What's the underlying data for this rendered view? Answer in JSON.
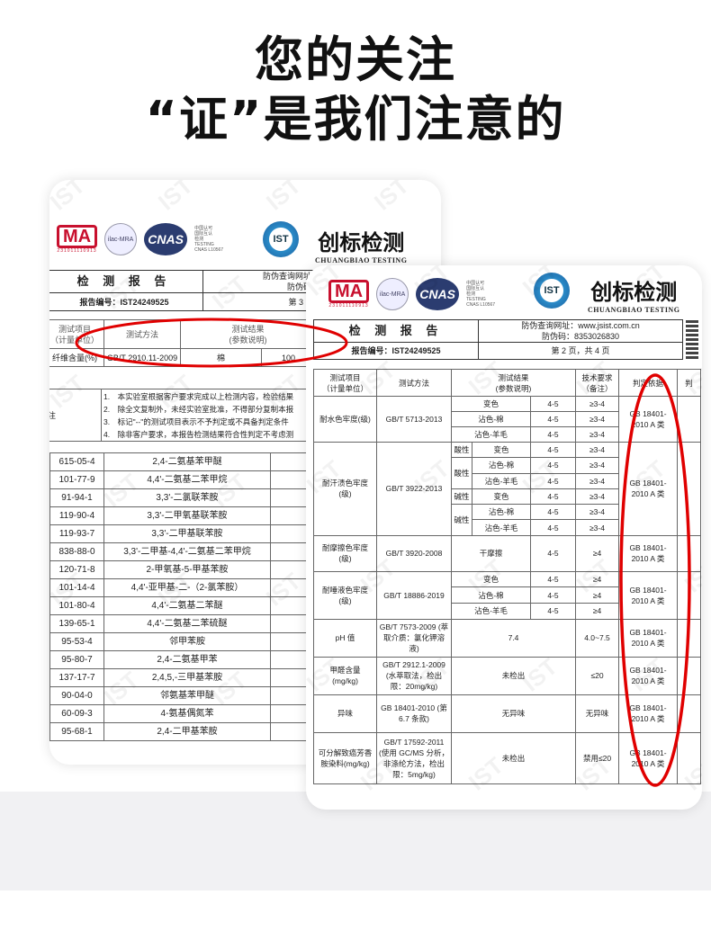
{
  "headline": {
    "line1": "您的关注",
    "line2": "“证”是我们注意的"
  },
  "colors": {
    "highlight": "#e00000",
    "brand_blue": "#1a5d9c",
    "cma_red": "#c8102e"
  },
  "logos": {
    "cma": "MA",
    "cma_number": "231011110913",
    "ilac": "ilac-MRA",
    "cnas": "CNAS",
    "cnas_text": [
      "中国认可",
      "国际互认",
      "检测",
      "TESTING",
      "CNAS L10567"
    ],
    "ist": "IST",
    "brand_cn": "创标检测",
    "brand_en": "CHUANGBIAO TESTING",
    "watermark": "IST"
  },
  "left_doc": {
    "title": "检 测 报 告",
    "verify_url_label": "防伪查询网址:",
    "verify_code_label": "防伪码:",
    "report_no": "报告编号：IST24249525",
    "page": "第 3 页",
    "table_header": {
      "item": "测试项目",
      "unit": "（计量单位）",
      "method": "测试方法",
      "result": "测试结果",
      "param": "(参数说明)"
    },
    "fiber_row": {
      "item": "纤维含量(%)",
      "method": "GB/T 2910.11-2009",
      "material": "棉",
      "value": "100"
    },
    "note_label": "注",
    "notes": [
      "1.　本实验室根据客户要求完成以上检测内容，检验结果",
      "2.　除全文复制外，未经实验室批准，不得部分复制本报",
      "3.　标记\"--\"的测试项目表示不予判定或不具备判定条件",
      "4.　除非客户要求，本报告检测结果符合性判定不考虑测"
    ],
    "amines": [
      [
        "615-05-4",
        "2,4-二氨基苯甲醚"
      ],
      [
        "101-77-9",
        "4,4'-二氨基二苯甲烷"
      ],
      [
        "91-94-1",
        "3,3'-二氯联苯胺"
      ],
      [
        "119-90-4",
        "3,3'-二甲氧基联苯胺"
      ],
      [
        "119-93-7",
        "3,3'-二甲基联苯胺"
      ],
      [
        "838-88-0",
        "3,3'-二甲基-4,4'-二氨基二苯甲烷"
      ],
      [
        "120-71-8",
        "2-甲氧基-5-甲基苯胺"
      ],
      [
        "101-14-4",
        "4,4'-亚甲基-二-（2-氯苯胺）"
      ],
      [
        "101-80-4",
        "4,4'-二氨基二苯醚"
      ],
      [
        "139-65-1",
        "4,4'-二氨基二苯硫醚"
      ],
      [
        "95-53-4",
        "邻甲苯胺"
      ],
      [
        "95-80-7",
        "2,4-二氨基甲苯"
      ],
      [
        "137-17-7",
        "2,4,5,-三甲基苯胺"
      ],
      [
        "90-04-0",
        "邻氨基苯甲醚"
      ],
      [
        "60-09-3",
        "4-氨基偶氮苯"
      ],
      [
        "95-68-1",
        "2,4-二甲基苯胺"
      ]
    ]
  },
  "right_doc": {
    "title": "检 测 报 告",
    "verify_url": "防伪查询网址：www.jsist.com.cn",
    "verify_code": "防伪码：8353026830",
    "report_no": "报告编号：IST24249525",
    "page": "第 2 页，共 4 页",
    "table_header": {
      "item": "测试项目",
      "unit": "（计量单位）",
      "method": "测试方法",
      "result": "测试结果",
      "param": "(参数说明)",
      "req": "技术要求",
      "req_note": "（备注）",
      "basis": "判定依据",
      "verdict": "判"
    },
    "standard": "GB 18401-2010 A 类",
    "water": {
      "item": "耐水色牢度(级)",
      "method": "GB/T 5713-2013",
      "rows": [
        [
          "变色",
          "4-5",
          "≥3-4"
        ],
        [
          "沾色-棉",
          "4-5",
          "≥3-4"
        ],
        [
          "沾色-羊毛",
          "4-5",
          "≥3-4"
        ]
      ]
    },
    "sweat": {
      "item": "耐汗渍色牢度(级)",
      "method": "GB/T 3922-2013",
      "acid": "酸性",
      "alkali": "碱性",
      "rows": [
        [
          "变色",
          "4-5",
          "≥3-4"
        ],
        [
          "沾色-棉",
          "4-5",
          "≥3-4"
        ],
        [
          "沾色-羊毛",
          "4-5",
          "≥3-4"
        ],
        [
          "变色",
          "4-5",
          "≥3-4"
        ],
        [
          "沾色-棉",
          "4-5",
          "≥3-4"
        ],
        [
          "沾色-羊毛",
          "4-5",
          "≥3-4"
        ]
      ]
    },
    "rub": {
      "item": "耐摩擦色牢度(级)",
      "method": "GB/T 3920-2008",
      "cond": "干摩擦",
      "value": "4-5",
      "req": "≥4"
    },
    "saliva": {
      "item": "耐唾液色牢度(级)",
      "method": "GB/T 18886-2019",
      "rows": [
        [
          "变色",
          "4-5",
          "≥4"
        ],
        [
          "沾色-棉",
          "4-5",
          "≥4"
        ],
        [
          "沾色-羊毛",
          "4-5",
          "≥4"
        ]
      ]
    },
    "ph": {
      "item": "pH 值",
      "method": "GB/T 7573-2009 (萃取介质：氯化钾溶液)",
      "value": "7.4",
      "req": "4.0~7.5"
    },
    "formaldehyde": {
      "item": "甲醛含量 (mg/kg)",
      "method": "GB/T 2912.1-2009 (水萃取法，检出限：20mg/kg)",
      "value": "未检出",
      "req": "≤20"
    },
    "odor": {
      "item": "异味",
      "method": "GB 18401-2010 (第 6.7 条款)",
      "value": "无异味",
      "req": "无异味"
    },
    "azo": {
      "item": "可分解致癌芳香胺染料(mg/kg)",
      "method": "GB/T 17592-2011 (使用 GC/MS 分析，非涤纶方法，检出限：5mg/kg)",
      "value": "未检出",
      "req": "禁用≤20"
    }
  }
}
